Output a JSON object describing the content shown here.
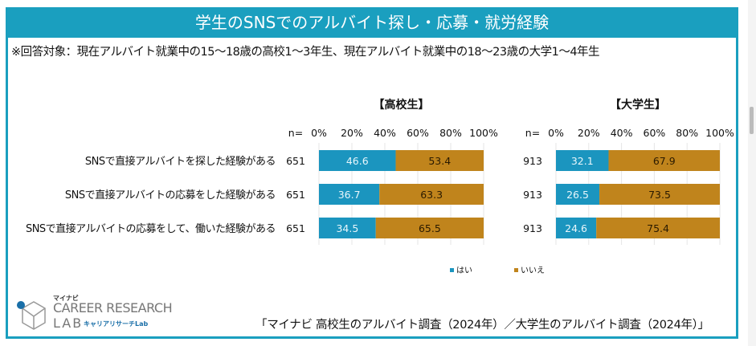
{
  "header": {
    "title": "学生のSNSでのアルバイト探し・応募・就労経験",
    "note": "※回答対象：現在アルバイト就業中の15～18歳の高校1～3年生、現在アルバイト就業中の18～23歳の大学1～4年生"
  },
  "chart_data": [
    {
      "type": "bar",
      "stacked": true,
      "orientation": "horizontal",
      "title": "【高校生】",
      "n_label": "n=",
      "categories": [
        "SNSで直接アルバイトを探した経験がある",
        "SNSで直接アルバイトの応募をした経験がある",
        "SNSで直接アルバイトの応募をして、働いた経験がある"
      ],
      "n": [
        651,
        651,
        651
      ],
      "series": [
        {
          "name": "はい",
          "values": [
            46.6,
            36.7,
            34.5
          ],
          "color": "#1b95bf"
        },
        {
          "name": "いいえ",
          "values": [
            53.4,
            63.3,
            65.5
          ],
          "color": "#c0841c"
        }
      ],
      "xlim": [
        0,
        100
      ],
      "ticks": [
        "0%",
        "20%",
        "40%",
        "60%",
        "80%",
        "100%"
      ],
      "grid": true
    },
    {
      "type": "bar",
      "stacked": true,
      "orientation": "horizontal",
      "title": "【大学生】",
      "n_label": "n=",
      "n": [
        913,
        913,
        913
      ],
      "series": [
        {
          "name": "はい",
          "values": [
            32.1,
            26.5,
            24.6
          ],
          "color": "#1b95bf"
        },
        {
          "name": "いいえ",
          "values": [
            67.9,
            73.5,
            75.4
          ],
          "color": "#c0841c"
        }
      ],
      "xlim": [
        0,
        100
      ],
      "ticks": [
        "0%",
        "20%",
        "40%",
        "60%",
        "80%",
        "100%"
      ],
      "grid": true
    }
  ],
  "legend": {
    "items": [
      "はい",
      "いいえ"
    ],
    "position": "bottom"
  },
  "footer": {
    "source": "「マイナビ 高校生のアルバイト調査（2024年）／大学生のアルバイト調査（2024年）」",
    "logo_top": "マイナビ",
    "logo_main": "CAREER RESEARCH",
    "logo_lab": "LAB",
    "logo_kana": "キャリアリサーチLab"
  }
}
